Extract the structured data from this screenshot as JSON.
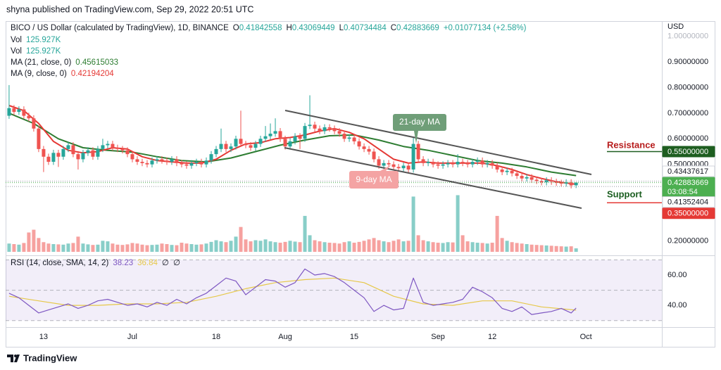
{
  "chart_data": {
    "type": "candlestick",
    "header": "shyna published on TradingView.com, Sep 29, 2022 20:51 UTC",
    "currency": "USD",
    "footer": "TradingView",
    "legend": {
      "symbol": "BICO / US Dollar (calculated by TradingView), 1D, BINANCE",
      "ohlc": [
        {
          "label": "O",
          "value": "0.41842558"
        },
        {
          "label": "H",
          "value": "0.43069449"
        },
        {
          "label": "L",
          "value": "0.40734484"
        },
        {
          "label": "C",
          "value": "0.42883669"
        }
      ],
      "change": "+0.01077134 (+2.58%)",
      "volume": [
        {
          "label": "Vol",
          "value": "125.927K"
        },
        {
          "label": "Vol",
          "value": "125.927K"
        }
      ],
      "rsi": {
        "label": "RSI (14, close, SMA, 14, 2)",
        "values": [
          "38.23",
          "36.84",
          "∅",
          "∅"
        ]
      }
    },
    "up_color": "#26a69a",
    "down_color": "#ef5350",
    "open": [
      0.69,
      0.72,
      0.705,
      0.715,
      0.69,
      0.68,
      0.64,
      0.56,
      0.53,
      0.51,
      0.545,
      0.53,
      0.56,
      0.575,
      0.54,
      0.52,
      0.545,
      0.555,
      0.53,
      0.56,
      0.575,
      0.58,
      0.565,
      0.56,
      0.555,
      0.54,
      0.52,
      0.51,
      0.505,
      0.5,
      0.515,
      0.52,
      0.515,
      0.51,
      0.52,
      0.505,
      0.5,
      0.495,
      0.505,
      0.51,
      0.5,
      0.515,
      0.54,
      0.56,
      0.58,
      0.56,
      0.57,
      0.6,
      0.58,
      0.575,
      0.565,
      0.58,
      0.6,
      0.61,
      0.62,
      0.63,
      0.6,
      0.57,
      0.59,
      0.61,
      0.6,
      0.65,
      0.655,
      0.64,
      0.63,
      0.645,
      0.64,
      0.63,
      0.62,
      0.6,
      0.605,
      0.59,
      0.57,
      0.56,
      0.55,
      0.52,
      0.495,
      0.505,
      0.5,
      0.49,
      0.485,
      0.495,
      0.48,
      0.58,
      0.52,
      0.505,
      0.51,
      0.5,
      0.495,
      0.5,
      0.505,
      0.5,
      0.51,
      0.505,
      0.5,
      0.51,
      0.515,
      0.5,
      0.505,
      0.495,
      0.48,
      0.47,
      0.475,
      0.465,
      0.455,
      0.445,
      0.45,
      0.44,
      0.435,
      0.43,
      0.438,
      0.432,
      0.428,
      0.425,
      0.43,
      0.41842558
    ],
    "high": [
      0.81,
      0.732,
      0.727,
      0.727,
      0.702,
      0.692,
      0.652,
      0.572,
      0.542,
      0.557,
      0.557,
      0.572,
      0.587,
      0.587,
      0.552,
      0.557,
      0.567,
      0.567,
      0.572,
      0.6,
      0.592,
      0.592,
      0.577,
      0.572,
      0.567,
      0.552,
      0.532,
      0.522,
      0.517,
      0.527,
      0.532,
      0.532,
      0.527,
      0.532,
      0.532,
      0.517,
      0.512,
      0.517,
      0.522,
      0.522,
      0.527,
      0.552,
      0.572,
      0.64,
      0.592,
      0.582,
      0.612,
      0.71,
      0.592,
      0.587,
      0.592,
      0.612,
      0.65,
      0.66,
      0.68,
      0.642,
      0.612,
      0.602,
      0.622,
      0.622,
      0.662,
      0.77,
      0.667,
      0.652,
      0.657,
      0.657,
      0.652,
      0.642,
      0.632,
      0.617,
      0.617,
      0.602,
      0.582,
      0.572,
      0.562,
      0.532,
      0.517,
      0.517,
      0.512,
      0.502,
      0.507,
      0.507,
      0.605,
      0.592,
      0.532,
      0.522,
      0.522,
      0.512,
      0.512,
      0.517,
      0.517,
      0.54,
      0.522,
      0.517,
      0.522,
      0.527,
      0.527,
      0.517,
      0.517,
      0.507,
      0.492,
      0.487,
      0.487,
      0.477,
      0.467,
      0.462,
      0.462,
      0.452,
      0.447,
      0.45,
      0.45,
      0.444,
      0.44,
      0.442,
      0.442,
      0.43069449
    ],
    "low": [
      0.678,
      0.693,
      0.693,
      0.678,
      0.668,
      0.628,
      0.548,
      0.47,
      0.498,
      0.498,
      0.49,
      0.518,
      0.548,
      0.528,
      0.48,
      0.508,
      0.533,
      0.518,
      0.518,
      0.548,
      0.563,
      0.553,
      0.548,
      0.543,
      0.528,
      0.508,
      0.498,
      0.493,
      0.488,
      0.488,
      0.503,
      0.503,
      0.498,
      0.498,
      0.493,
      0.488,
      0.483,
      0.483,
      0.493,
      0.488,
      0.488,
      0.503,
      0.528,
      0.548,
      0.548,
      0.548,
      0.558,
      0.568,
      0.563,
      0.553,
      0.553,
      0.568,
      0.588,
      0.598,
      0.608,
      0.588,
      0.558,
      0.558,
      0.578,
      0.56,
      0.588,
      0.638,
      0.628,
      0.618,
      0.618,
      0.628,
      0.618,
      0.608,
      0.588,
      0.588,
      0.578,
      0.558,
      0.548,
      0.538,
      0.508,
      0.483,
      0.483,
      0.488,
      0.478,
      0.473,
      0.473,
      0.468,
      0.468,
      0.508,
      0.493,
      0.493,
      0.488,
      0.483,
      0.483,
      0.488,
      0.488,
      0.488,
      0.493,
      0.488,
      0.488,
      0.498,
      0.488,
      0.488,
      0.483,
      0.468,
      0.458,
      0.458,
      0.453,
      0.443,
      0.433,
      0.433,
      0.428,
      0.423,
      0.418,
      0.418,
      0.42,
      0.416,
      0.413,
      0.413,
      0.406,
      0.40734484
    ],
    "close": [
      0.72,
      0.705,
      0.715,
      0.69,
      0.68,
      0.64,
      0.56,
      0.53,
      0.51,
      0.545,
      0.53,
      0.56,
      0.575,
      0.54,
      0.52,
      0.545,
      0.555,
      0.53,
      0.56,
      0.575,
      0.58,
      0.565,
      0.56,
      0.555,
      0.54,
      0.52,
      0.51,
      0.505,
      0.5,
      0.515,
      0.52,
      0.515,
      0.51,
      0.52,
      0.505,
      0.5,
      0.495,
      0.505,
      0.51,
      0.5,
      0.515,
      0.54,
      0.56,
      0.58,
      0.56,
      0.57,
      0.6,
      0.58,
      0.575,
      0.565,
      0.58,
      0.6,
      0.61,
      0.62,
      0.63,
      0.6,
      0.57,
      0.59,
      0.61,
      0.6,
      0.65,
      0.655,
      0.64,
      0.63,
      0.645,
      0.64,
      0.63,
      0.62,
      0.6,
      0.605,
      0.59,
      0.57,
      0.56,
      0.55,
      0.52,
      0.495,
      0.505,
      0.5,
      0.49,
      0.485,
      0.495,
      0.48,
      0.58,
      0.52,
      0.505,
      0.51,
      0.5,
      0.495,
      0.5,
      0.505,
      0.5,
      0.51,
      0.505,
      0.5,
      0.51,
      0.515,
      0.5,
      0.505,
      0.495,
      0.48,
      0.47,
      0.475,
      0.465,
      0.455,
      0.445,
      0.45,
      0.44,
      0.435,
      0.43,
      0.438,
      0.432,
      0.428,
      0.425,
      0.43,
      0.418,
      0.42883669
    ],
    "volume": [
      300,
      280,
      260,
      320,
      700,
      800,
      500,
      350,
      300,
      280,
      270,
      260,
      300,
      320,
      550,
      300,
      270,
      250,
      260,
      400,
      380,
      300,
      260,
      250,
      270,
      320,
      300,
      260,
      240,
      250,
      260,
      300,
      280,
      250,
      240,
      330,
      300,
      280,
      260,
      270,
      300,
      360,
      420,
      380,
      350,
      400,
      550,
      900,
      450,
      380,
      420,
      400,
      450,
      380,
      350,
      330,
      360,
      400,
      370,
      350,
      1300,
      600,
      420,
      380,
      350,
      330,
      320,
      300,
      350,
      380,
      330,
      360,
      400,
      450,
      500,
      420,
      380,
      350,
      400,
      450,
      380,
      400,
      2000,
      600,
      420,
      380,
      350,
      330,
      320,
      350,
      340,
      2050,
      600,
      380,
      350,
      330,
      320,
      300,
      330,
      1300,
      500,
      400,
      350,
      320,
      300,
      280,
      260,
      250,
      240,
      230,
      220,
      210,
      200,
      190,
      200,
      125.927
    ],
    "volume_lim": [
      0,
      2800
    ],
    "ma": [
      {
        "label": "MA (21, close, 0)",
        "value": "0.45615033",
        "color": "#2e7d32",
        "x": [
          0,
          5,
          10,
          15,
          20,
          25,
          30,
          35,
          40,
          45,
          50,
          55,
          60,
          65,
          70,
          75,
          80,
          85,
          90,
          95,
          100,
          105,
          110,
          115
        ],
        "values": [
          0.7,
          0.66,
          0.6,
          0.565,
          0.555,
          0.548,
          0.53,
          0.515,
          0.51,
          0.525,
          0.55,
          0.575,
          0.595,
          0.612,
          0.615,
          0.595,
          0.57,
          0.555,
          0.535,
          0.515,
          0.505,
          0.49,
          0.47,
          0.45615033
        ]
      },
      {
        "label": "MA (9, close, 0)",
        "value": "0.42194204",
        "color": "#e53935",
        "x": [
          0,
          3,
          6,
          9,
          12,
          15,
          18,
          21,
          24,
          27,
          30,
          33,
          36,
          39,
          42,
          45,
          48,
          51,
          54,
          57,
          60,
          63,
          66,
          69,
          72,
          75,
          78,
          81,
          84,
          87,
          90,
          93,
          96,
          99,
          102,
          105,
          108,
          111,
          114,
          115
        ],
        "values": [
          0.73,
          0.71,
          0.66,
          0.59,
          0.555,
          0.545,
          0.55,
          0.565,
          0.56,
          0.53,
          0.515,
          0.51,
          0.505,
          0.505,
          0.52,
          0.555,
          0.58,
          0.585,
          0.6,
          0.605,
          0.615,
          0.63,
          0.64,
          0.625,
          0.6,
          0.56,
          0.52,
          0.505,
          0.51,
          0.505,
          0.505,
          0.505,
          0.505,
          0.495,
          0.48,
          0.46,
          0.445,
          0.432,
          0.425,
          0.42194204
        ]
      }
    ],
    "xlim": [
      -0.7,
      132.4
    ],
    "xticks": [
      {
        "value": 7,
        "label": "13"
      },
      {
        "value": 25,
        "label": "Jul"
      },
      {
        "value": 42,
        "label": "18"
      },
      {
        "value": 56,
        "label": "Aug"
      },
      {
        "value": 70,
        "label": "15"
      },
      {
        "value": 87,
        "label": "Sep"
      },
      {
        "value": 98,
        "label": "12"
      },
      {
        "value": 117,
        "label": "Oct"
      }
    ],
    "ylim": [
      0.15,
      1.06
    ],
    "yticks": [
      {
        "value": 1.0,
        "label": "1.00000000"
      },
      {
        "value": 0.9,
        "label": "0.90000000"
      },
      {
        "value": 0.8,
        "label": "0.80000000"
      },
      {
        "value": 0.7,
        "label": "0.70000000"
      },
      {
        "value": 0.6,
        "label": "0.60000000"
      },
      {
        "value": 0.5,
        "label": "0.50000000"
      },
      {
        "value": 0.2,
        "label": "0.20000000"
      }
    ],
    "price_markers": [
      {
        "value": 0.55,
        "label": "0.55000000",
        "color": "#1e5e20"
      },
      {
        "value": 0.43437617,
        "label": "0.43437617",
        "color": "#ffffff"
      },
      {
        "value": 0.42883669,
        "label": "0.42883669",
        "color": "#4caf50",
        "countdown": "03:08:54"
      },
      {
        "value": 0.41352404,
        "label": "0.41352404",
        "color": "#ffffff"
      },
      {
        "value": 0.35,
        "label": "0.35000000",
        "color": "#e53935"
      }
    ],
    "annotations": {
      "ma21": "21-day MA",
      "ma9": "9-day MA",
      "resistance": "Resistance",
      "support": "Support"
    },
    "rsi": {
      "color": "#7e57c2",
      "ma_color": "#e6c84a",
      "x": [
        0,
        2,
        4,
        6,
        8,
        10,
        12,
        14,
        16,
        18,
        20,
        22,
        24,
        26,
        28,
        30,
        32,
        34,
        36,
        38,
        40,
        42,
        44,
        46,
        48,
        50,
        52,
        54,
        56,
        58,
        60,
        62,
        64,
        66,
        68,
        70,
        72,
        74,
        76,
        78,
        80,
        82,
        84,
        86,
        88,
        90,
        92,
        94,
        96,
        98,
        100,
        102,
        104,
        106,
        108,
        110,
        112,
        114,
        115
      ],
      "values": [
        48,
        45,
        40,
        35,
        37,
        39,
        41,
        38,
        40,
        43,
        44,
        42,
        40,
        41,
        39,
        42,
        40,
        44,
        41,
        45,
        48,
        53,
        58,
        56,
        47,
        52,
        57,
        56,
        52,
        55,
        64,
        60,
        61,
        59,
        55,
        50,
        45,
        36,
        40,
        37,
        38,
        58,
        42,
        40,
        41,
        42,
        44,
        52,
        49,
        45,
        38,
        36,
        39,
        34,
        35,
        36,
        38,
        35,
        38.23
      ],
      "ma_x": [
        0,
        6,
        12,
        18,
        24,
        30,
        36,
        42,
        48,
        54,
        60,
        66,
        72,
        78,
        84,
        90,
        96,
        102,
        108,
        115
      ],
      "ma_values": [
        46,
        43,
        40,
        40,
        41,
        41,
        42,
        46,
        51,
        55,
        57,
        58,
        55,
        46,
        41,
        40,
        43,
        43,
        39,
        36.84
      ],
      "ylim": [
        28,
        71.6
      ],
      "yticks": [
        {
          "value": 60,
          "label": "60.00"
        },
        {
          "value": 40,
          "label": "40.00"
        }
      ],
      "levels": [
        70,
        50,
        30
      ]
    }
  }
}
